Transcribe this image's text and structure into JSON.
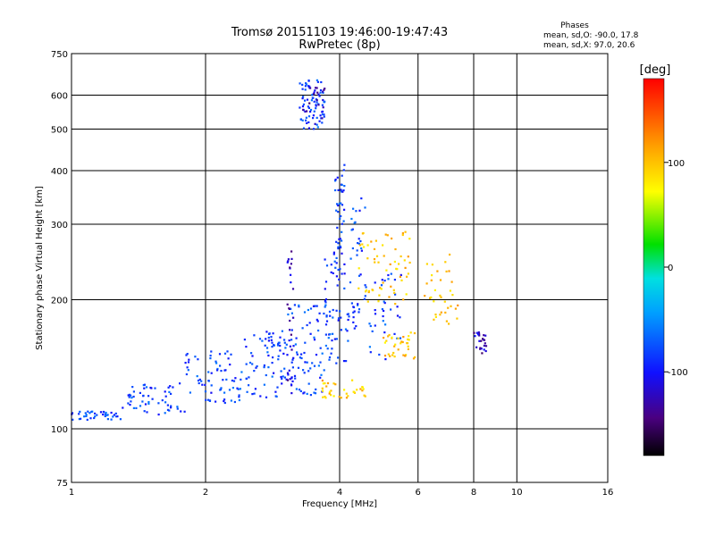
{
  "chart_data": {
    "type": "scatter",
    "title": "Tromsø 20151103 19:46:00-19:47:43",
    "subtitle": "RwPretec (8p)",
    "xlabel": "Frequency [MHz]",
    "ylabel": "Stationary phase Virtual Height [km]",
    "xscale": "log",
    "yscale": "log",
    "xlim": [
      1,
      16
    ],
    "ylim": [
      75,
      750
    ],
    "grid": true,
    "x_ticks": [
      1,
      2,
      4,
      6,
      8,
      10,
      16
    ],
    "y_ticks": [
      75,
      100,
      200,
      300,
      400,
      500,
      600,
      750
    ],
    "x_tick_labels": [
      "1",
      "2",
      "4",
      "6",
      "8",
      "10",
      "16"
    ],
    "y_tick_labels": [
      "75",
      "100",
      "200",
      "300",
      "400",
      "500",
      "600",
      "750"
    ],
    "stats": {
      "heading": "Phases",
      "line_o": "mean, sd,O: -90.0, 17.8",
      "line_x": "mean, sd,X:  97.0, 20.6"
    },
    "colorbar": {
      "label": "[deg]",
      "range": [
        -180,
        180
      ],
      "ticks": [
        -100,
        0,
        100
      ],
      "tick_labels": [
        "-100",
        "0",
        "100"
      ]
    },
    "clusters": [
      {
        "name": "O",
        "color_value": -90,
        "segments": [
          {
            "x": [
              1.0,
              1.3
            ],
            "y": [
              105,
              110
            ],
            "n": 40
          },
          {
            "x": [
              1.3,
              1.8
            ],
            "y": [
              108,
              128
            ],
            "n": 55
          },
          {
            "x": [
              1.8,
              2.4
            ],
            "y": [
              115,
              152
            ],
            "n": 70
          },
          {
            "x": [
              2.4,
              3.0
            ],
            "y": [
              118,
              170
            ],
            "n": 70
          },
          {
            "x": [
              3.0,
              3.7
            ],
            "y": [
              120,
              195
            ],
            "n": 80
          },
          {
            "x": [
              3.7,
              4.2
            ],
            "y": [
              140,
              260
            ],
            "n": 60
          },
          {
            "x": [
              3.9,
              4.1
            ],
            "y": [
              230,
              420
            ],
            "n": 45
          },
          {
            "x": [
              4.2,
              4.6
            ],
            "y": [
              170,
              350
            ],
            "n": 40
          },
          {
            "x": [
              4.6,
              5.5
            ],
            "y": [
              145,
              230
            ],
            "n": 35
          },
          {
            "x": [
              3.25,
              3.7
            ],
            "y": [
              500,
              650
            ],
            "n": 70
          }
        ]
      },
      {
        "name": "X",
        "color_value": 97,
        "segments": [
          {
            "x": [
              3.6,
              4.6
            ],
            "y": [
              118,
              130
            ],
            "n": 35
          },
          {
            "x": [
              4.4,
              5.8
            ],
            "y": [
              190,
              290
            ],
            "n": 60
          },
          {
            "x": [
              5.0,
              5.9
            ],
            "y": [
              145,
              170
            ],
            "n": 35
          },
          {
            "x": [
              6.2,
              7.2
            ],
            "y": [
              200,
              260
            ],
            "n": 20
          },
          {
            "x": [
              6.5,
              7.4
            ],
            "y": [
              175,
              200
            ],
            "n": 15
          }
        ]
      },
      {
        "name": "purple-streaks",
        "color_value": -130,
        "segments": [
          {
            "x": [
              3.05,
              3.15
            ],
            "y": [
              120,
              260
            ],
            "n": 30
          },
          {
            "x": [
              8.0,
              8.6
            ],
            "y": [
              150,
              170
            ],
            "n": 25
          },
          {
            "x": [
              3.3,
              3.7
            ],
            "y": [
              510,
              640
            ],
            "n": 25
          }
        ]
      }
    ]
  }
}
